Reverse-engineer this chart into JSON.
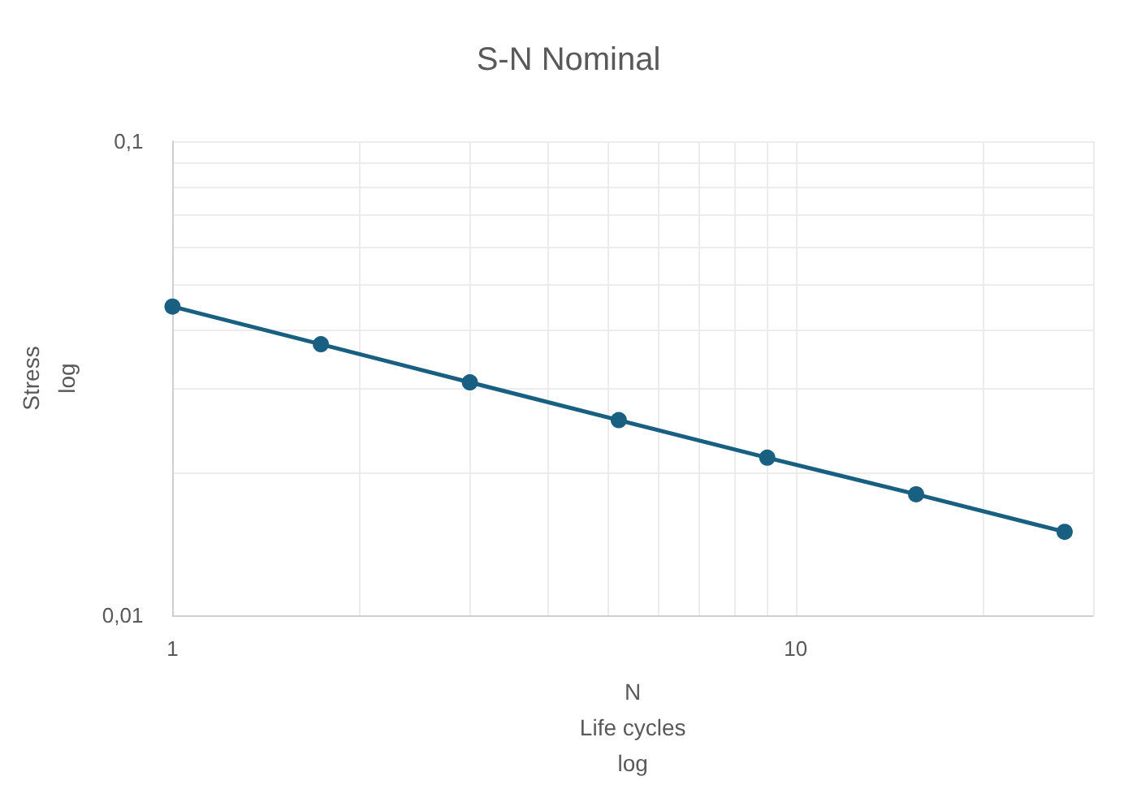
{
  "chart_data": {
    "type": "line",
    "title": "S-N Nominal",
    "xlabel": "N\nLife cycles\nlog",
    "ylabel": "Stress\nlog",
    "x": [
      1,
      1.73,
      3,
      5.2,
      9,
      15.6,
      27
    ],
    "series": [
      {
        "color": "#195f82",
        "values": [
          0.0448,
          0.0373,
          0.031,
          0.0258,
          0.0215,
          0.018,
          0.015
        ]
      }
    ],
    "log": "xy",
    "xlim": [
      1,
      30
    ],
    "ylim": [
      0.01,
      0.1
    ],
    "xticks": [
      1,
      {
        "value": 2,
        "label": null
      },
      {
        "value": 3,
        "label": null
      },
      {
        "value": 4,
        "label": null
      },
      {
        "value": 5,
        "label": null
      },
      {
        "value": 6,
        "label": null
      },
      {
        "value": 7,
        "label": null
      },
      {
        "value": 8,
        "label": null
      },
      {
        "value": 9,
        "label": null
      },
      10,
      {
        "value": 20,
        "label": null
      },
      {
        "value": 30,
        "label": null
      }
    ],
    "yticks": [
      {
        "value": 0.01,
        "label": "0,01"
      },
      {
        "value": 0.02,
        "label": null
      },
      {
        "value": 0.03,
        "label": null
      },
      {
        "value": 0.04,
        "label": null
      },
      {
        "value": 0.05,
        "label": null
      },
      {
        "value": 0.06,
        "label": null
      },
      {
        "value": 0.07,
        "label": null
      },
      {
        "value": 0.08,
        "label": null
      },
      {
        "value": 0.09,
        "label": null
      },
      {
        "value": 0.1,
        "label": "0,1"
      }
    ],
    "grid": true,
    "marker": "circle",
    "line_style": "solid"
  }
}
